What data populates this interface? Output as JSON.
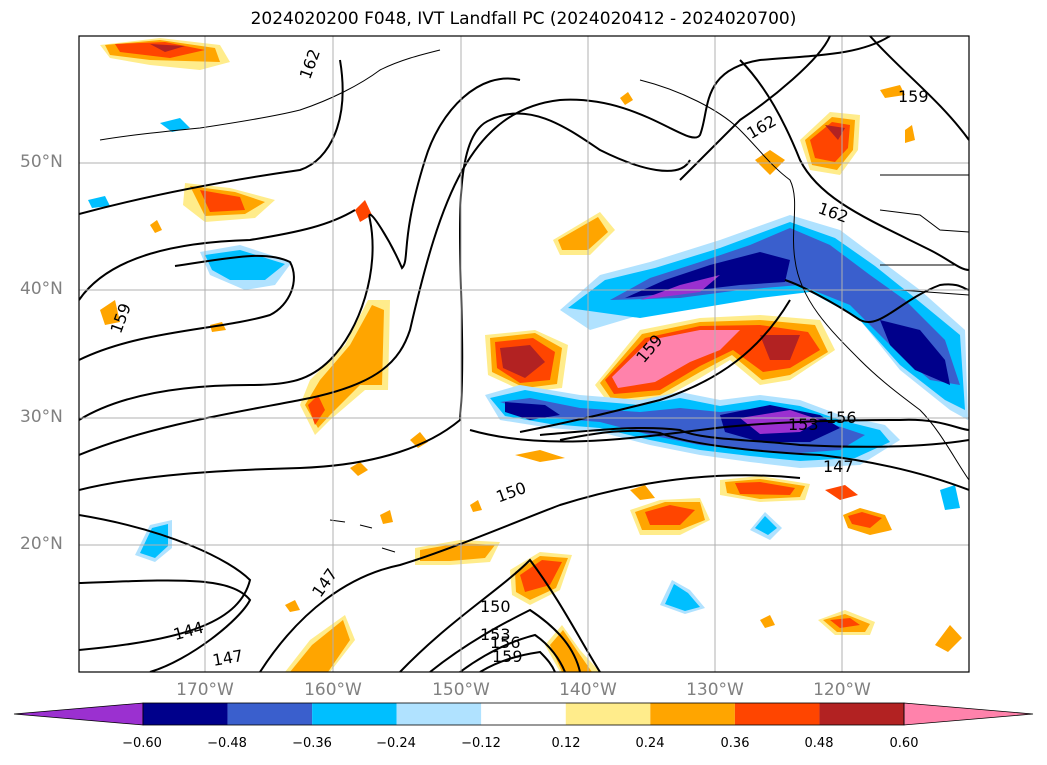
{
  "title": "2024020200 F048, IVT Landfall PC (2024020412 - 2024020700)",
  "lat_labels": [
    "50°N",
    "40°N",
    "30°N",
    "20°N"
  ],
  "lon_labels": [
    "170°W",
    "160°W",
    "150°W",
    "140°W",
    "130°W",
    "120°W"
  ],
  "contour_labels": [
    "162",
    "162",
    "162",
    "159",
    "159",
    "159",
    "156",
    "153",
    "150",
    "147",
    "147",
    "144",
    "147",
    "150",
    "153",
    "156",
    "159"
  ],
  "colorbar": {
    "ticks": [
      "−0.60",
      "−0.48",
      "−0.36",
      "−0.24",
      "−0.12",
      "0.12",
      "0.24",
      "0.36",
      "0.48",
      "0.60"
    ],
    "colors": [
      "#9b30d0",
      "#00008b",
      "#3a5fcd",
      "#00bfff",
      "#b0e2ff",
      "#ffffff",
      "#ffec8b",
      "#ffa500",
      "#ff4500",
      "#b22222",
      "#ff82ab"
    ]
  }
}
